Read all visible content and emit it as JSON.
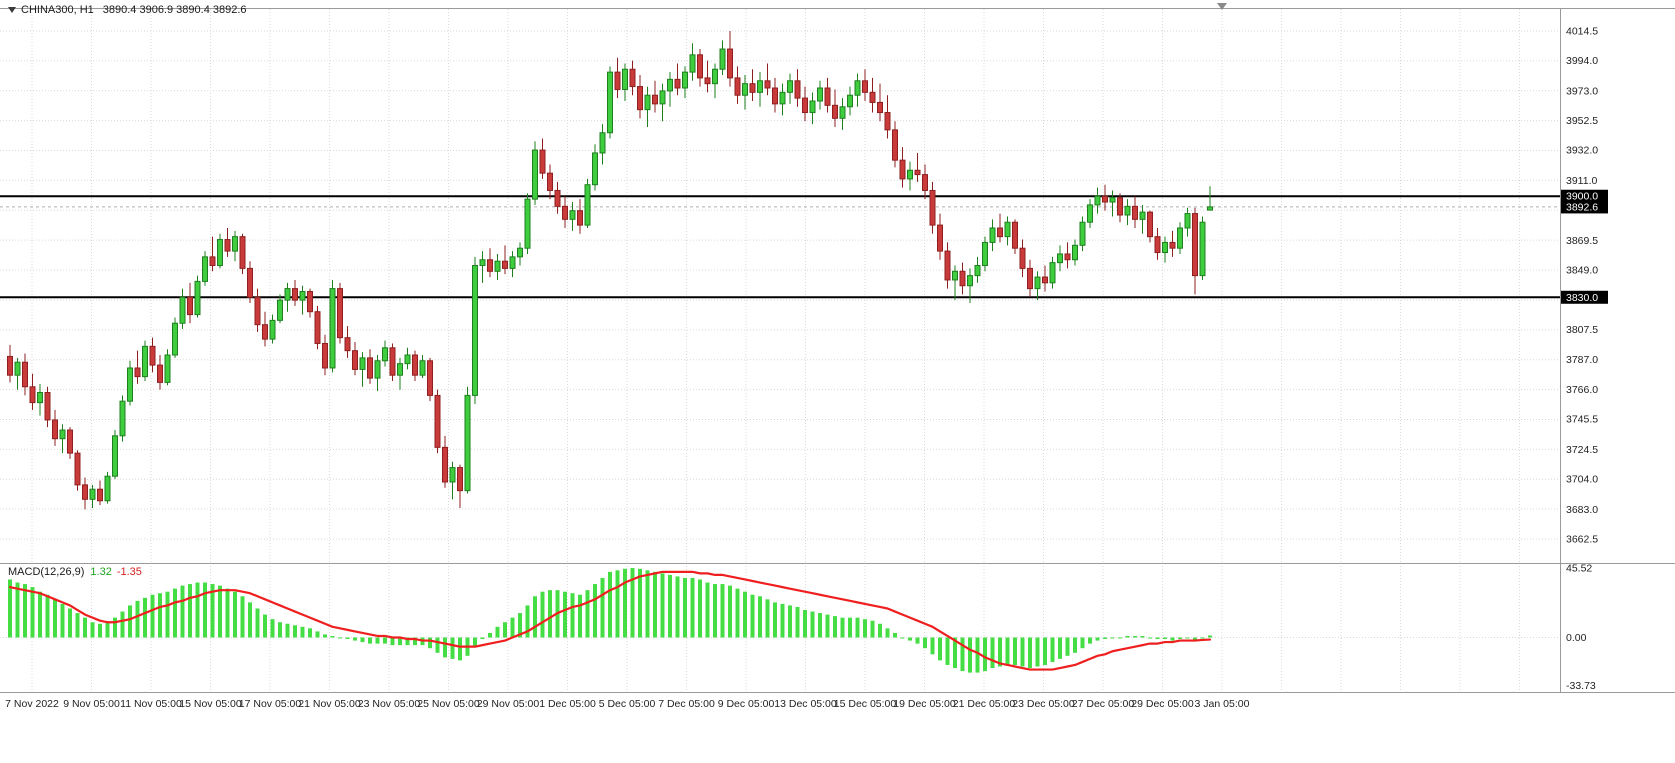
{
  "header": {
    "symbol": "CHINA300, H1",
    "ohlc_text": "3890.4 3906.9 3890.4 3892.6",
    "open": "3890.4",
    "high": "3906.9",
    "low": "3890.4",
    "close": "3892.6"
  },
  "colors": {
    "background": "#ffffff",
    "grid": "#d9d9d9",
    "separator": "#9a9a9a",
    "bull_fill": "#3fcc3f",
    "bull_stroke": "#1e7f1e",
    "bear_fill": "#c93b3b",
    "bear_stroke": "#8f1f1f",
    "macd_hist": "#44dd44",
    "macd_signal": "#f01f1f",
    "hline": "#000000",
    "bid_line": "#b0b0b0",
    "badge_bg": "#000000",
    "badge_fg": "#ffffff",
    "axis_text": "#1f1f1f",
    "shift_marker": "#8a8a8a"
  },
  "chart_data": {
    "type": "candlestick",
    "title": "CHINA300 H1 with MACD(12,26,9)",
    "symbol": "CHINA300",
    "timeframe": "H1",
    "price_axis_labels": [
      "4014.5",
      "3994.0",
      "3973.0",
      "3952.5",
      "3932.0",
      "3911.0",
      "3869.5",
      "3849.0",
      "3807.5",
      "3787.0",
      "3766.0",
      "3745.5",
      "3724.5",
      "3704.0",
      "3683.0",
      "3662.5"
    ],
    "price_badges": [
      {
        "label": "3900.0",
        "kind": "horizontal-line-level"
      },
      {
        "label": "3892.6",
        "kind": "bid-price"
      },
      {
        "label": "3830.0",
        "kind": "horizontal-line-level"
      }
    ],
    "horizontal_lines": [
      3900.0,
      3830.0
    ],
    "bid_price": 3892.6,
    "ylim": [
      3662.5,
      4014.5
    ],
    "time_labels": [
      "7 Nov 2022",
      "9 Nov 05:00",
      "11 Nov 05:00",
      "15 Nov 05:00",
      "17 Nov 05:00",
      "21 Nov 05:00",
      "23 Nov 05:00",
      "25 Nov 05:00",
      "29 Nov 05:00",
      "1 Dec 05:00",
      "5 Dec 05:00",
      "7 Dec 05:00",
      "9 Dec 05:00",
      "13 Dec 05:00",
      "15 Dec 05:00",
      "19 Dec 05:00",
      "21 Dec 05:00",
      "23 Dec 05:00",
      "27 Dec 05:00",
      "29 Dec 05:00",
      "3 Jan 05:00"
    ],
    "candles": [
      [
        3789,
        3797,
        3771,
        3776
      ],
      [
        3776,
        3788,
        3766,
        3785
      ],
      [
        3785,
        3791,
        3762,
        3768
      ],
      [
        3768,
        3777,
        3752,
        3757
      ],
      [
        3757,
        3770,
        3748,
        3764
      ],
      [
        3764,
        3768,
        3740,
        3745
      ],
      [
        3745,
        3752,
        3727,
        3732
      ],
      [
        3732,
        3742,
        3722,
        3738
      ],
      [
        3738,
        3740,
        3718,
        3722
      ],
      [
        3722,
        3724,
        3696,
        3700
      ],
      [
        3700,
        3705,
        3683,
        3690
      ],
      [
        3690,
        3700,
        3684,
        3697
      ],
      [
        3697,
        3703,
        3686,
        3689
      ],
      [
        3689,
        3709,
        3687,
        3706
      ],
      [
        3706,
        3738,
        3704,
        3734
      ],
      [
        3734,
        3762,
        3730,
        3758
      ],
      [
        3758,
        3786,
        3755,
        3781
      ],
      [
        3781,
        3793,
        3770,
        3775
      ],
      [
        3775,
        3800,
        3772,
        3796
      ],
      [
        3796,
        3802,
        3778,
        3783
      ],
      [
        3783,
        3790,
        3766,
        3771
      ],
      [
        3771,
        3794,
        3769,
        3790
      ],
      [
        3790,
        3816,
        3788,
        3812
      ],
      [
        3812,
        3836,
        3808,
        3830
      ],
      [
        3830,
        3840,
        3812,
        3818
      ],
      [
        3818,
        3845,
        3816,
        3841
      ],
      [
        3841,
        3862,
        3838,
        3858
      ],
      [
        3858,
        3872,
        3848,
        3852
      ],
      [
        3852,
        3874,
        3850,
        3870
      ],
      [
        3870,
        3878,
        3858,
        3862
      ],
      [
        3862,
        3876,
        3855,
        3872
      ],
      [
        3872,
        3874,
        3846,
        3850
      ],
      [
        3850,
        3855,
        3826,
        3830
      ],
      [
        3830,
        3836,
        3806,
        3811
      ],
      [
        3811,
        3820,
        3796,
        3801
      ],
      [
        3801,
        3818,
        3798,
        3814
      ],
      [
        3814,
        3832,
        3812,
        3828
      ],
      [
        3828,
        3840,
        3820,
        3836
      ],
      [
        3836,
        3842,
        3824,
        3828
      ],
      [
        3828,
        3838,
        3818,
        3834
      ],
      [
        3834,
        3836,
        3816,
        3820
      ],
      [
        3820,
        3824,
        3794,
        3798
      ],
      [
        3798,
        3804,
        3776,
        3781
      ],
      [
        3781,
        3842,
        3778,
        3836
      ],
      [
        3836,
        3840,
        3798,
        3802
      ],
      [
        3802,
        3810,
        3788,
        3793
      ],
      [
        3793,
        3799,
        3776,
        3780
      ],
      [
        3780,
        3792,
        3768,
        3788
      ],
      [
        3788,
        3794,
        3770,
        3774
      ],
      [
        3774,
        3790,
        3765,
        3786
      ],
      [
        3786,
        3800,
        3782,
        3795
      ],
      [
        3795,
        3798,
        3772,
        3776
      ],
      [
        3776,
        3788,
        3766,
        3784
      ],
      [
        3784,
        3795,
        3780,
        3790
      ],
      [
        3790,
        3793,
        3772,
        3776
      ],
      [
        3776,
        3790,
        3774,
        3786
      ],
      [
        3786,
        3788,
        3758,
        3762
      ],
      [
        3762,
        3766,
        3722,
        3726
      ],
      [
        3726,
        3734,
        3698,
        3702
      ],
      [
        3702,
        3716,
        3690,
        3712
      ],
      [
        3712,
        3714,
        3684,
        3696
      ],
      [
        3696,
        3768,
        3694,
        3762
      ],
      [
        3762,
        3858,
        3756,
        3852
      ],
      [
        3852,
        3862,
        3840,
        3856
      ],
      [
        3856,
        3864,
        3844,
        3848
      ],
      [
        3848,
        3860,
        3842,
        3855
      ],
      [
        3855,
        3866,
        3846,
        3850
      ],
      [
        3850,
        3862,
        3844,
        3858
      ],
      [
        3858,
        3868,
        3852,
        3864
      ],
      [
        3864,
        3902,
        3860,
        3898
      ],
      [
        3898,
        3938,
        3894,
        3932
      ],
      [
        3932,
        3940,
        3912,
        3916
      ],
      [
        3916,
        3922,
        3898,
        3904
      ],
      [
        3904,
        3910,
        3888,
        3893
      ],
      [
        3893,
        3900,
        3878,
        3884
      ],
      [
        3884,
        3896,
        3876,
        3890
      ],
      [
        3890,
        3898,
        3874,
        3880
      ],
      [
        3880,
        3912,
        3878,
        3908
      ],
      [
        3908,
        3936,
        3904,
        3930
      ],
      [
        3930,
        3950,
        3922,
        3944
      ],
      [
        3944,
        3990,
        3940,
        3986
      ],
      [
        3986,
        3996,
        3968,
        3974
      ],
      [
        3974,
        3992,
        3966,
        3988
      ],
      [
        3988,
        3994,
        3970,
        3976
      ],
      [
        3976,
        3984,
        3954,
        3960
      ],
      [
        3960,
        3976,
        3948,
        3970
      ],
      [
        3970,
        3980,
        3958,
        3964
      ],
      [
        3964,
        3978,
        3952,
        3973
      ],
      [
        3973,
        3986,
        3962,
        3981
      ],
      [
        3981,
        3992,
        3970,
        3975
      ],
      [
        3975,
        3990,
        3968,
        3986
      ],
      [
        3986,
        4006,
        3980,
        3998
      ],
      [
        3998,
        4002,
        3976,
        3982
      ],
      [
        3982,
        3994,
        3972,
        3978
      ],
      [
        3978,
        3992,
        3968,
        3988
      ],
      [
        3988,
        4008,
        3984,
        4002
      ],
      [
        4002,
        4014.5,
        3976,
        3982
      ],
      [
        3982,
        3990,
        3964,
        3970
      ],
      [
        3970,
        3984,
        3960,
        3978
      ],
      [
        3978,
        3988,
        3966,
        3972
      ],
      [
        3972,
        3986,
        3962,
        3980
      ],
      [
        3980,
        3992,
        3970,
        3975
      ],
      [
        3975,
        3982,
        3958,
        3964
      ],
      [
        3964,
        3978,
        3956,
        3972
      ],
      [
        3972,
        3985,
        3964,
        3980
      ],
      [
        3980,
        3988,
        3962,
        3968
      ],
      [
        3968,
        3976,
        3952,
        3958
      ],
      [
        3958,
        3972,
        3950,
        3966
      ],
      [
        3966,
        3980,
        3960,
        3975
      ],
      [
        3975,
        3982,
        3958,
        3963
      ],
      [
        3963,
        3974,
        3948,
        3954
      ],
      [
        3954,
        3968,
        3946,
        3962
      ],
      [
        3962,
        3976,
        3956,
        3970
      ],
      [
        3970,
        3985,
        3962,
        3980
      ],
      [
        3980,
        3988,
        3966,
        3972
      ],
      [
        3972,
        3982,
        3958,
        3965
      ],
      [
        3965,
        3978,
        3952,
        3958
      ],
      [
        3958,
        3970,
        3940,
        3946
      ],
      [
        3946,
        3952,
        3920,
        3925
      ],
      [
        3925,
        3934,
        3906,
        3912
      ],
      [
        3912,
        3924,
        3904,
        3918
      ],
      [
        3918,
        3930,
        3910,
        3915
      ],
      [
        3915,
        3922,
        3898,
        3904
      ],
      [
        3904,
        3910,
        3874,
        3880
      ],
      [
        3880,
        3888,
        3856,
        3862
      ],
      [
        3862,
        3868,
        3836,
        3842
      ],
      [
        3842,
        3852,
        3828,
        3848
      ],
      [
        3848,
        3854,
        3832,
        3838
      ],
      [
        3838,
        3850,
        3826,
        3845
      ],
      [
        3845,
        3858,
        3840,
        3852
      ],
      [
        3852,
        3872,
        3848,
        3868
      ],
      [
        3868,
        3884,
        3862,
        3878
      ],
      [
        3878,
        3888,
        3868,
        3872
      ],
      [
        3872,
        3886,
        3866,
        3882
      ],
      [
        3882,
        3884,
        3860,
        3864
      ],
      [
        3864,
        3870,
        3844,
        3850
      ],
      [
        3850,
        3856,
        3830,
        3836
      ],
      [
        3836,
        3848,
        3828,
        3844
      ],
      [
        3844,
        3852,
        3834,
        3840
      ],
      [
        3840,
        3858,
        3836,
        3854
      ],
      [
        3854,
        3866,
        3848,
        3860
      ],
      [
        3860,
        3868,
        3850,
        3856
      ],
      [
        3856,
        3870,
        3852,
        3866
      ],
      [
        3866,
        3886,
        3862,
        3882
      ],
      [
        3882,
        3898,
        3878,
        3894
      ],
      [
        3894,
        3906,
        3888,
        3900
      ],
      [
        3900,
        3908,
        3890,
        3896
      ],
      [
        3896,
        3904,
        3886,
        3899
      ],
      [
        3899,
        3902,
        3882,
        3887
      ],
      [
        3887,
        3898,
        3880,
        3893
      ],
      [
        3893,
        3900,
        3878,
        3884
      ],
      [
        3884,
        3894,
        3874,
        3889
      ],
      [
        3889,
        3890,
        3868,
        3872
      ],
      [
        3872,
        3878,
        3856,
        3861
      ],
      [
        3861,
        3872,
        3854,
        3868
      ],
      [
        3868,
        3876,
        3858,
        3864
      ],
      [
        3864,
        3882,
        3860,
        3878
      ],
      [
        3878,
        3892,
        3872,
        3888
      ],
      [
        3888,
        3892,
        3832,
        3845
      ],
      [
        3845,
        3886,
        3842,
        3882
      ],
      [
        3890.4,
        3906.9,
        3890.4,
        3892.6
      ]
    ],
    "macd": {
      "label": "MACD(12,26,9)",
      "value_main": "1.32",
      "value_signal": "-1.35",
      "axis_labels": [
        "45.52",
        "0.00",
        "-33.73"
      ],
      "hist": [
        38,
        36,
        35,
        33,
        30,
        28,
        25,
        22,
        19,
        16,
        13,
        10,
        9,
        10,
        13,
        17,
        21,
        24,
        26,
        28,
        29,
        30,
        32,
        34,
        35,
        36,
        36,
        35,
        34,
        32,
        30,
        27,
        23,
        19,
        15,
        12,
        10,
        9,
        8,
        7,
        6,
        4,
        2,
        1,
        0,
        -1,
        -2,
        -3,
        -4,
        -4,
        -4,
        -5,
        -5,
        -5,
        -5,
        -5,
        -7,
        -10,
        -13,
        -14,
        -15,
        -12,
        -6,
        -1,
        3,
        7,
        10,
        13,
        16,
        21,
        27,
        30,
        31,
        31,
        30,
        29,
        28,
        31,
        35,
        39,
        43,
        44,
        45,
        45.5,
        45,
        44,
        43,
        42,
        41,
        40,
        39,
        39,
        38,
        36,
        35,
        35,
        34,
        32,
        30,
        28,
        27,
        25,
        23,
        22,
        21,
        20,
        18,
        17,
        16,
        15,
        14,
        13,
        13,
        13,
        12,
        11,
        9,
        6,
        3,
        0,
        -2,
        -4,
        -7,
        -11,
        -15,
        -18,
        -20,
        -22,
        -23,
        -23,
        -22,
        -20,
        -19,
        -18,
        -18,
        -19,
        -20,
        -19,
        -18,
        -16,
        -14,
        -12,
        -10,
        -7,
        -4,
        -2,
        -1,
        0,
        0,
        1,
        1,
        1,
        0,
        -1,
        -1,
        -2,
        -1,
        0,
        -2,
        0,
        1.32
      ],
      "signal": [
        33,
        32,
        31,
        30,
        29,
        27,
        25,
        23,
        21,
        18,
        15,
        13,
        11,
        10,
        10,
        11,
        12,
        14,
        16,
        18,
        20,
        21,
        23,
        24,
        26,
        27,
        29,
        30,
        31,
        31,
        31,
        30,
        29,
        27,
        25,
        23,
        21,
        19,
        17,
        15,
        13,
        11,
        9,
        7,
        6,
        5,
        4,
        3,
        2,
        1,
        1,
        0,
        0,
        -1,
        -1,
        -2,
        -2,
        -3,
        -4,
        -5,
        -6,
        -6,
        -6,
        -5,
        -4,
        -3,
        -2,
        0,
        2,
        4,
        7,
        10,
        13,
        16,
        18,
        20,
        21,
        23,
        25,
        28,
        31,
        33,
        36,
        38,
        40,
        41,
        42,
        43,
        43,
        43,
        43,
        43,
        42,
        42,
        41,
        41,
        40,
        39,
        38,
        37,
        36,
        35,
        34,
        33,
        32,
        31,
        30,
        29,
        28,
        27,
        26,
        25,
        24,
        23,
        22,
        21,
        20,
        19,
        17,
        15,
        13,
        11,
        9,
        7,
        4,
        1,
        -2,
        -5,
        -8,
        -10,
        -13,
        -15,
        -17,
        -18,
        -19,
        -20,
        -21,
        -21,
        -21,
        -21,
        -20,
        -19,
        -18,
        -16,
        -14,
        -12,
        -11,
        -9,
        -8,
        -7,
        -6,
        -5,
        -4,
        -4,
        -3,
        -3,
        -2,
        -2,
        -2,
        -1.6,
        -1.35
      ]
    }
  }
}
